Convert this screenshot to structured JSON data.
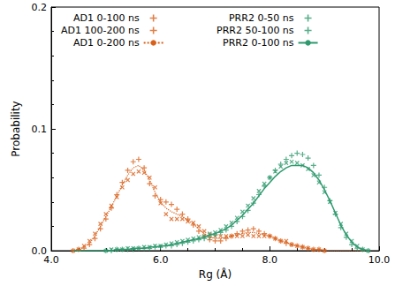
{
  "chart_data": {
    "type": "line",
    "x_label": "Rg (Å)",
    "y_label": "Probability",
    "xlim": [
      4,
      10
    ],
    "xticks": [
      {
        "value": 4,
        "label": "4.0"
      },
      {
        "value": 6,
        "label": "6.0"
      },
      {
        "value": 8,
        "label": "8.0"
      },
      {
        "value": 10,
        "label": "10.0"
      }
    ],
    "ylim": [
      0,
      0.2
    ],
    "yticks": [
      {
        "value": 0,
        "label": "0.0"
      },
      {
        "value": 0.1,
        "label": "0.1"
      },
      {
        "value": 0.2,
        "label": "0.2"
      }
    ],
    "grid": false,
    "legend": "top",
    "x": [
      4.4,
      4.5,
      4.6,
      4.7,
      4.8,
      4.9,
      5.0,
      5.1,
      5.2,
      5.3,
      5.4,
      5.5,
      5.6,
      5.7,
      5.8,
      5.9,
      6.0,
      6.1,
      6.2,
      6.3,
      6.4,
      6.5,
      6.6,
      6.7,
      6.8,
      6.9,
      7.0,
      7.1,
      7.2,
      7.3,
      7.4,
      7.5,
      7.6,
      7.7,
      7.8,
      7.9,
      8.0,
      8.1,
      8.2,
      8.3,
      8.4,
      8.5,
      8.6,
      8.7,
      8.8,
      8.9,
      9.0,
      9.1,
      9.2,
      9.3,
      9.4,
      9.5,
      9.6,
      9.7,
      9.8
    ],
    "series": [
      {
        "name": "AD1 0-100 ns",
        "type": "scatter",
        "marker": "plus",
        "color": "#d9601a",
        "values": [
          0,
          0.001,
          0.002,
          0.005,
          0.01,
          0.018,
          0.026,
          0.035,
          0.046,
          0.056,
          0.066,
          0.073,
          0.075,
          0.068,
          0.055,
          0.045,
          0.042,
          0.04,
          0.038,
          0.034,
          0.03,
          0.026,
          0.021,
          0.016,
          0.012,
          0.009,
          0.008,
          0.008,
          0.01,
          0.012,
          0.014,
          0.016,
          0.017,
          0.018,
          0.016,
          0.014,
          0.012,
          0.01,
          0.008,
          0.006,
          0.005,
          0.004,
          0.003,
          0.002,
          0.001,
          0.001,
          0,
          null,
          null,
          null,
          null,
          null,
          null,
          null,
          null
        ]
      },
      {
        "name": "AD1 100-200 ns",
        "type": "scatter",
        "marker": "cross",
        "color": "#d9601a",
        "values": [
          0,
          0.001,
          0.004,
          0.008,
          0.014,
          0.022,
          0.03,
          0.037,
          0.044,
          0.052,
          0.058,
          0.063,
          0.065,
          0.064,
          0.06,
          0.052,
          0.039,
          0.03,
          0.026,
          0.026,
          0.026,
          0.024,
          0.023,
          0.02,
          0.016,
          0.013,
          0.012,
          0.012,
          0.012,
          0.012,
          0.012,
          0.012,
          0.013,
          0.012,
          0.012,
          0.012,
          0.012,
          0.01,
          0.008,
          0.008,
          0.005,
          0.004,
          0.003,
          0.002,
          0.001,
          0.001,
          0,
          null,
          null,
          null,
          null,
          null,
          null,
          null,
          null
        ]
      },
      {
        "name": "AD1 0-200 ns",
        "type": "line",
        "line_style": "dotted",
        "color": "#d9601a",
        "values": [
          0,
          0.001,
          0.003,
          0.006,
          0.012,
          0.02,
          0.028,
          0.036,
          0.045,
          0.054,
          0.062,
          0.068,
          0.07,
          0.066,
          0.058,
          0.048,
          0.04,
          0.035,
          0.032,
          0.03,
          0.028,
          0.025,
          0.022,
          0.018,
          0.014,
          0.011,
          0.01,
          0.01,
          0.011,
          0.012,
          0.013,
          0.014,
          0.015,
          0.015,
          0.014,
          0.013,
          0.012,
          0.01,
          0.008,
          0.007,
          0.005,
          0.004,
          0.003,
          0.002,
          0.001,
          0.001,
          0,
          0,
          0,
          0,
          0,
          0,
          0,
          0,
          0
        ]
      },
      {
        "name": "PRR2 0-50 ns",
        "type": "scatter",
        "marker": "plus",
        "color": "#2e9a6e",
        "values": [
          null,
          null,
          null,
          null,
          null,
          null,
          0,
          0,
          0.001,
          0.001,
          0.001,
          0.001,
          0.002,
          0.002,
          0.002,
          0.003,
          0.003,
          0.004,
          0.004,
          0.005,
          0.006,
          0.007,
          0.008,
          0.009,
          0.01,
          0.011,
          0.013,
          0.015,
          0.017,
          0.02,
          0.024,
          0.028,
          0.033,
          0.039,
          0.046,
          0.053,
          0.06,
          0.066,
          0.071,
          0.075,
          0.078,
          0.08,
          0.079,
          0.076,
          0.07,
          0.062,
          0.052,
          0.041,
          0.03,
          0.019,
          0.011,
          0.005,
          0.002,
          0.001,
          0
        ]
      },
      {
        "name": "PRR2 50-100 ns",
        "type": "scatter",
        "marker": "cross",
        "color": "#2e9a6e",
        "values": [
          null,
          null,
          null,
          null,
          null,
          null,
          0,
          0.001,
          0.001,
          0.001,
          0.002,
          0.002,
          0.002,
          0.003,
          0.003,
          0.004,
          0.004,
          0.005,
          0.006,
          0.007,
          0.008,
          0.009,
          0.01,
          0.011,
          0.012,
          0.014,
          0.015,
          0.017,
          0.02,
          0.023,
          0.027,
          0.032,
          0.037,
          0.043,
          0.049,
          0.055,
          0.06,
          0.065,
          0.069,
          0.072,
          0.073,
          0.072,
          0.07,
          0.067,
          0.062,
          0.056,
          0.048,
          0.04,
          0.031,
          0.022,
          0.014,
          0.008,
          0.004,
          0.001,
          0
        ]
      },
      {
        "name": "PRR2 0-100 ns",
        "type": "line",
        "line_style": "solid",
        "color": "#2e9a6e",
        "values": [
          0,
          0,
          0,
          0,
          0,
          0,
          0,
          0,
          0.001,
          0.001,
          0.001,
          0.002,
          0.002,
          0.002,
          0.003,
          0.003,
          0.004,
          0.004,
          0.005,
          0.006,
          0.007,
          0.008,
          0.009,
          0.01,
          0.011,
          0.013,
          0.014,
          0.016,
          0.018,
          0.021,
          0.025,
          0.029,
          0.034,
          0.039,
          0.045,
          0.051,
          0.056,
          0.061,
          0.065,
          0.068,
          0.07,
          0.07,
          0.07,
          0.068,
          0.064,
          0.058,
          0.05,
          0.041,
          0.031,
          0.021,
          0.013,
          0.007,
          0.003,
          0.001,
          0
        ]
      }
    ]
  }
}
